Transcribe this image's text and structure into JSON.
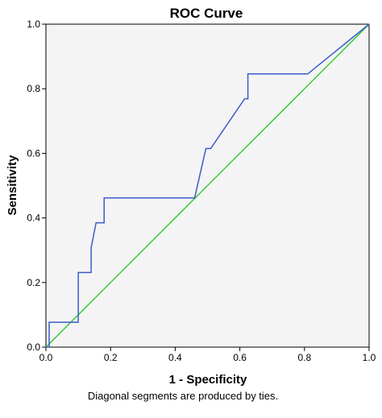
{
  "chart_data": {
    "type": "line",
    "title": "ROC Curve",
    "xlabel": "1 - Specificity",
    "ylabel": "Sensitivity",
    "footnote": "Diagonal segments are produced by ties.",
    "xlim": [
      0,
      1
    ],
    "ylim": [
      0,
      1
    ],
    "xticks": [
      "0.0",
      "0.2",
      "0.4",
      "0.6",
      "0.8",
      "1.0"
    ],
    "yticks": [
      "0.0",
      "0.2",
      "0.4",
      "0.6",
      "0.8",
      "1.0"
    ],
    "grid": false,
    "series": [
      {
        "color": "#3b5bcc",
        "x": [
          0.0,
          0.01,
          0.01,
          0.1,
          0.1,
          0.14,
          0.14,
          0.155,
          0.155,
          0.18,
          0.18,
          0.46,
          0.495,
          0.5,
          0.51,
          0.615,
          0.615,
          0.625,
          0.625,
          0.81,
          1.0
        ],
        "y": [
          0.0,
          0.0,
          0.077,
          0.077,
          0.231,
          0.231,
          0.308,
          0.385,
          0.385,
          0.385,
          0.462,
          0.462,
          0.615,
          0.615,
          0.615,
          0.769,
          0.769,
          0.769,
          0.846,
          0.846,
          1.0
        ]
      },
      {
        "color": "#33cc33",
        "x": [
          0,
          1
        ],
        "y": [
          0,
          1
        ]
      }
    ],
    "colors": {
      "plot_background": "#f4f4f4",
      "frame": "#000000"
    }
  }
}
